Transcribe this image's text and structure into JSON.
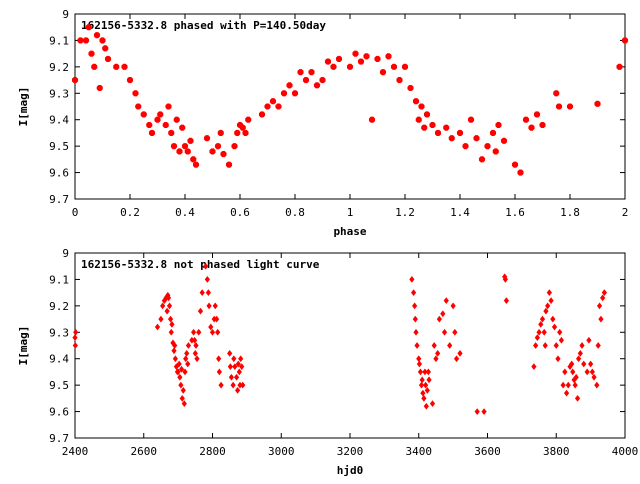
{
  "colors": {
    "marker": "#ff0000",
    "frame": "#000000",
    "background": "#ffffff"
  },
  "chart_data": [
    {
      "type": "scatter",
      "title": "162156-5332.8 phased with P=140.50day",
      "xlabel": "phase",
      "ylabel": "I[mag]",
      "xlim": [
        0,
        2
      ],
      "ylim": [
        9.7,
        9
      ],
      "y_inverted": true,
      "grid": false,
      "legend": "none",
      "marker": "filled-octagon",
      "xticks": [
        0,
        0.2,
        0.4,
        0.6,
        0.8,
        1,
        1.2,
        1.4,
        1.6,
        1.8,
        2
      ],
      "xtick_labels": [
        "0",
        "0.2",
        "0.4",
        "0.6",
        "0.8",
        "1",
        "1.2",
        "1.4",
        "1.6",
        "1.8",
        "2"
      ],
      "yticks": [
        9,
        9.1,
        9.2,
        9.3,
        9.4,
        9.5,
        9.6,
        9.7
      ],
      "ytick_labels": [
        "9",
        "9.1",
        "9.2",
        "9.3",
        "9.4",
        "9.5",
        "9.6",
        "9.7"
      ],
      "x": [
        0.0,
        0.02,
        0.04,
        0.05,
        0.06,
        0.07,
        0.08,
        0.09,
        0.1,
        0.11,
        0.12,
        0.15,
        0.18,
        0.2,
        0.22,
        0.23,
        0.25,
        0.27,
        0.28,
        0.3,
        0.31,
        0.33,
        0.34,
        0.35,
        0.36,
        0.37,
        0.38,
        0.39,
        0.4,
        0.41,
        0.42,
        0.43,
        0.44,
        0.48,
        0.5,
        0.52,
        0.53,
        0.54,
        0.56,
        0.58,
        0.59,
        0.6,
        0.61,
        0.62,
        0.63,
        0.68,
        0.7,
        0.72,
        0.74,
        0.76,
        0.78,
        0.8,
        0.82,
        0.84,
        0.86,
        0.88,
        0.9,
        0.92,
        0.94,
        0.96,
        1.0,
        1.02,
        1.04,
        1.06,
        1.08,
        1.1,
        1.12,
        1.14,
        1.16,
        1.18,
        1.2,
        1.22,
        1.24,
        1.25,
        1.26,
        1.27,
        1.28,
        1.3,
        1.32,
        1.35,
        1.37,
        1.4,
        1.42,
        1.44,
        1.46,
        1.48,
        1.5,
        1.52,
        1.53,
        1.54,
        1.56,
        1.6,
        1.62,
        1.64,
        1.66,
        1.68,
        1.7,
        1.75,
        1.76,
        1.8,
        1.9,
        1.98,
        2.0
      ],
      "y": [
        9.25,
        9.1,
        9.1,
        9.05,
        9.15,
        9.2,
        9.08,
        9.28,
        9.1,
        9.13,
        9.17,
        9.2,
        9.2,
        9.25,
        9.3,
        9.35,
        9.38,
        9.42,
        9.45,
        9.4,
        9.38,
        9.42,
        9.35,
        9.45,
        9.5,
        9.4,
        9.52,
        9.43,
        9.5,
        9.52,
        9.48,
        9.55,
        9.57,
        9.47,
        9.52,
        9.5,
        9.45,
        9.53,
        9.57,
        9.5,
        9.45,
        9.42,
        9.43,
        9.45,
        9.4,
        9.38,
        9.35,
        9.33,
        9.35,
        9.3,
        9.27,
        9.3,
        9.22,
        9.25,
        9.22,
        9.27,
        9.25,
        9.18,
        9.2,
        9.17,
        9.2,
        9.15,
        9.18,
        9.16,
        9.4,
        9.17,
        9.22,
        9.16,
        9.2,
        9.25,
        9.2,
        9.28,
        9.33,
        9.4,
        9.35,
        9.43,
        9.38,
        9.42,
        9.45,
        9.43,
        9.47,
        9.45,
        9.5,
        9.4,
        9.47,
        9.55,
        9.5,
        9.45,
        9.52,
        9.42,
        9.48,
        9.57,
        9.6,
        9.4,
        9.43,
        9.38,
        9.42,
        9.3,
        9.35,
        9.35,
        9.34,
        9.2,
        9.1
      ]
    },
    {
      "type": "scatter",
      "title": "162156-5332.8 not phased light curve",
      "xlabel": "hjd0",
      "ylabel": "I[mag]",
      "xlim": [
        2400,
        4000
      ],
      "ylim": [
        9.7,
        9
      ],
      "y_inverted": true,
      "grid": false,
      "legend": "none",
      "marker": "diamond",
      "xticks": [
        2400,
        2600,
        2800,
        3000,
        3200,
        3400,
        3600,
        3800,
        4000
      ],
      "xtick_labels": [
        "2400",
        "2600",
        "2800",
        "3000",
        "3200",
        "3400",
        "3600",
        "3800",
        "4000"
      ],
      "yticks": [
        9,
        9.1,
        9.2,
        9.3,
        9.4,
        9.5,
        9.6,
        9.7
      ],
      "ytick_labels": [
        "9",
        "9.1",
        "9.2",
        "9.3",
        "9.4",
        "9.5",
        "9.6",
        "9.7"
      ],
      "x": [
        2400,
        2401,
        2402,
        2640,
        2650,
        2655,
        2660,
        2665,
        2668,
        2670,
        2672,
        2675,
        2678,
        2680,
        2682,
        2685,
        2688,
        2690,
        2692,
        2695,
        2698,
        2700,
        2703,
        2705,
        2708,
        2710,
        2712,
        2715,
        2718,
        2720,
        2722,
        2725,
        2728,
        2730,
        2740,
        2745,
        2748,
        2750,
        2752,
        2755,
        2760,
        2765,
        2770,
        2780,
        2785,
        2788,
        2790,
        2795,
        2800,
        2805,
        2808,
        2812,
        2815,
        2818,
        2820,
        2825,
        2850,
        2852,
        2855,
        2860,
        2862,
        2865,
        2870,
        2873,
        2875,
        2878,
        2880,
        2882,
        2885,
        2888,
        3380,
        3385,
        3388,
        3390,
        3392,
        3395,
        3400,
        3402,
        3405,
        3408,
        3410,
        3412,
        3415,
        3418,
        3420,
        3422,
        3425,
        3428,
        3430,
        3440,
        3445,
        3450,
        3455,
        3460,
        3470,
        3475,
        3480,
        3490,
        3500,
        3505,
        3510,
        3520,
        3570,
        3590,
        3650,
        3652,
        3655,
        3735,
        3740,
        3745,
        3750,
        3755,
        3760,
        3765,
        3768,
        3770,
        3775,
        3780,
        3785,
        3790,
        3795,
        3800,
        3805,
        3810,
        3815,
        3820,
        3825,
        3830,
        3835,
        3840,
        3845,
        3848,
        3852,
        3855,
        3858,
        3862,
        3865,
        3870,
        3875,
        3880,
        3890,
        3895,
        3900,
        3905,
        3910,
        3918,
        3922,
        3926,
        3930,
        3935,
        3940
      ],
      "y": [
        9.32,
        9.35,
        9.3,
        9.28,
        9.25,
        9.2,
        9.18,
        9.17,
        9.22,
        9.16,
        9.17,
        9.2,
        9.25,
        9.3,
        9.27,
        9.34,
        9.37,
        9.35,
        9.4,
        9.43,
        9.45,
        9.45,
        9.42,
        9.47,
        9.5,
        9.44,
        9.55,
        9.52,
        9.57,
        9.45,
        9.4,
        9.38,
        9.42,
        9.35,
        9.33,
        9.3,
        9.33,
        9.38,
        9.35,
        9.4,
        9.3,
        9.22,
        9.15,
        9.05,
        9.1,
        9.15,
        9.2,
        9.28,
        9.3,
        9.25,
        9.2,
        9.25,
        9.3,
        9.4,
        9.45,
        9.5,
        9.38,
        9.43,
        9.47,
        9.5,
        9.4,
        9.43,
        9.47,
        9.52,
        9.42,
        9.45,
        9.5,
        9.4,
        9.43,
        9.5,
        9.1,
        9.15,
        9.2,
        9.25,
        9.3,
        9.35,
        9.4,
        9.42,
        9.45,
        9.5,
        9.48,
        9.53,
        9.55,
        9.45,
        9.5,
        9.58,
        9.52,
        9.45,
        9.48,
        9.57,
        9.35,
        9.4,
        9.38,
        9.25,
        9.23,
        9.3,
        9.18,
        9.35,
        9.2,
        9.3,
        9.4,
        9.38,
        9.6,
        9.6,
        9.09,
        9.1,
        9.18,
        9.43,
        9.35,
        9.32,
        9.3,
        9.27,
        9.25,
        9.3,
        9.35,
        9.22,
        9.2,
        9.15,
        9.18,
        9.25,
        9.28,
        9.35,
        9.4,
        9.3,
        9.33,
        9.5,
        9.45,
        9.53,
        9.5,
        9.43,
        9.42,
        9.45,
        9.48,
        9.5,
        9.47,
        9.55,
        9.4,
        9.38,
        9.35,
        9.42,
        9.45,
        9.33,
        9.42,
        9.45,
        9.47,
        9.5,
        9.35,
        9.2,
        9.25,
        9.17,
        9.15
      ]
    }
  ]
}
